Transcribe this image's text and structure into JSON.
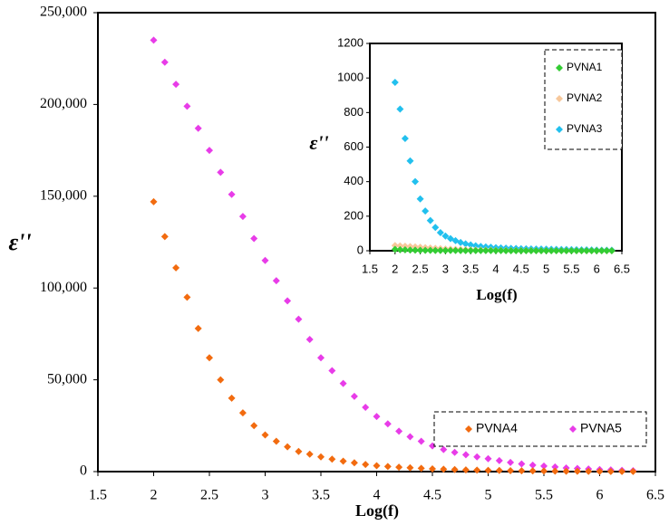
{
  "chart_data": [
    {
      "type": "scatter",
      "x_label": "Log(f)",
      "y_label": "ε''",
      "xlim": [
        1.5,
        6.5
      ],
      "xticks": [
        1.5,
        2,
        2.5,
        3,
        3.5,
        4,
        4.5,
        5,
        5.5,
        6,
        6.5
      ],
      "ylim": [
        0,
        250000
      ],
      "yticks": [
        0,
        {
          "value": 50000,
          "label": "50,000"
        },
        {
          "value": 100000,
          "label": "100,000"
        },
        {
          "value": 150000,
          "label": "150,000"
        },
        {
          "value": 200000,
          "label": "200,000"
        },
        {
          "value": 250000,
          "label": "250,000"
        }
      ],
      "legend": "lower right",
      "x": [
        2.0,
        2.1,
        2.2,
        2.3,
        2.4,
        2.5,
        2.6,
        2.7,
        2.8,
        2.9,
        3.0,
        3.1,
        3.2,
        3.3,
        3.4,
        3.5,
        3.6,
        3.7,
        3.8,
        3.9,
        4.0,
        4.1,
        4.2,
        4.3,
        4.4,
        4.5,
        4.6,
        4.7,
        4.8,
        4.9,
        5.0,
        5.1,
        5.2,
        5.3,
        5.4,
        5.5,
        5.6,
        5.7,
        5.8,
        5.9,
        6.0,
        6.1,
        6.2,
        6.3
      ],
      "series": [
        {
          "name": "PVNA4",
          "color": "#f26b0f",
          "values": [
            147000,
            128000,
            111000,
            95000,
            78000,
            62000,
            50000,
            40000,
            32000,
            25000,
            20000,
            16500,
            13500,
            11000,
            9500,
            8000,
            6800,
            5700,
            4800,
            3900,
            3200,
            2800,
            2400,
            2100,
            1800,
            1500,
            1300,
            1100,
            950,
            800,
            700,
            600,
            500,
            420,
            350,
            300,
            250,
            200,
            170,
            140,
            110,
            90,
            70,
            50
          ]
        },
        {
          "name": "PVNA5",
          "color": "#e83ce8",
          "values": [
            235000,
            223000,
            211000,
            199000,
            187000,
            175000,
            163000,
            151000,
            139000,
            127000,
            115000,
            104000,
            93000,
            83000,
            72000,
            62000,
            55000,
            48000,
            41000,
            35000,
            30000,
            26000,
            22000,
            19000,
            16500,
            14000,
            12000,
            10500,
            9200,
            8000,
            7000,
            6000,
            5000,
            4200,
            3500,
            3000,
            2500,
            2000,
            1700,
            1400,
            1100,
            900,
            700,
            500
          ]
        }
      ]
    },
    {
      "type": "scatter",
      "x_label": "Log(f)",
      "y_label": "ε''",
      "xlim": [
        1.5,
        6.5
      ],
      "xticks": [
        1.5,
        2,
        2.5,
        3,
        3.5,
        4,
        4.5,
        5,
        5.5,
        6,
        6.5
      ],
      "ylim": [
        0,
        1200
      ],
      "yticks": [
        0,
        200,
        400,
        600,
        800,
        1000,
        1200
      ],
      "legend": "upper right",
      "x": [
        2.0,
        2.1,
        2.2,
        2.3,
        2.4,
        2.5,
        2.6,
        2.7,
        2.8,
        2.9,
        3.0,
        3.1,
        3.2,
        3.3,
        3.4,
        3.5,
        3.6,
        3.7,
        3.8,
        3.9,
        4.0,
        4.1,
        4.2,
        4.3,
        4.4,
        4.5,
        4.6,
        4.7,
        4.8,
        4.9,
        5.0,
        5.1,
        5.2,
        5.3,
        5.4,
        5.5,
        5.6,
        5.7,
        5.8,
        5.9,
        6.0,
        6.1,
        6.2,
        6.3
      ],
      "series": [
        {
          "name": "PVNA1",
          "color": "#33cc33",
          "values": [
            8,
            6,
            5,
            4,
            3,
            2.5,
            2,
            1.8,
            1.6,
            1.4,
            1.2,
            1,
            1,
            0.9,
            0.8,
            0.7,
            0.6,
            0.6,
            0.5,
            0.5,
            0.4,
            0.4,
            0.3,
            0.3,
            0.3,
            0.2,
            0.2,
            0.2,
            0.2,
            0.1,
            0.1,
            0.1,
            0.1,
            0.1,
            0.1,
            0.1,
            0.1,
            0.1,
            0.1,
            0.1,
            0.1,
            0.1,
            0.1,
            0.1
          ]
        },
        {
          "name": "PVNA2",
          "color": "#f7c89b",
          "values": [
            30,
            28,
            26,
            24,
            22,
            20,
            18,
            16,
            14,
            12,
            10,
            9,
            8,
            7,
            6,
            5,
            4.5,
            4,
            3.5,
            3,
            2.5,
            2,
            2,
            1.5,
            1.5,
            1,
            1,
            1,
            0.8,
            0.8,
            0.6,
            0.6,
            0.5,
            0.5,
            0.4,
            0.4,
            0.3,
            0.3,
            0.3,
            0.2,
            0.2,
            0.2,
            0.2,
            0.2
          ]
        },
        {
          "name": "PVNA3",
          "color": "#22c0ee",
          "values": [
            975,
            820,
            650,
            520,
            400,
            300,
            230,
            175,
            135,
            105,
            85,
            70,
            58,
            48,
            40,
            34,
            29,
            25,
            22,
            20,
            18,
            16.5,
            15,
            14,
            13,
            12,
            11,
            10.5,
            10,
            9.5,
            9,
            8.5,
            8,
            7.5,
            7,
            6.5,
            6,
            5.5,
            5,
            4.5,
            4,
            3.5,
            3,
            3
          ]
        }
      ]
    }
  ]
}
